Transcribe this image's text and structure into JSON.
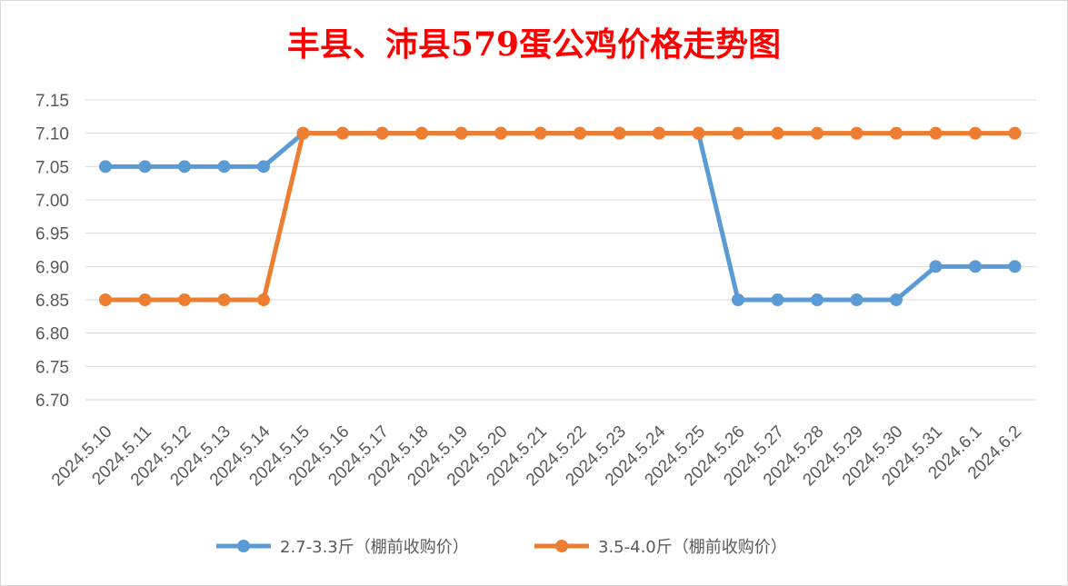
{
  "colors": {
    "title": "#ff0000",
    "series1": "#5b9bd5",
    "series2": "#ed7d31",
    "grid": "#d9d9d9",
    "text": "#595959"
  },
  "chart_data": {
    "type": "line",
    "title": "丰县、沛县579蛋公鸡价格走势图",
    "xlabel": "",
    "ylabel": "",
    "ylim": [
      6.7,
      7.15
    ],
    "yticks": [
      "7.15",
      "7.10",
      "7.05",
      "7.00",
      "6.95",
      "6.90",
      "6.85",
      "6.80",
      "6.75",
      "6.70"
    ],
    "categories": [
      "2024.5.10",
      "2024.5.11",
      "2024.5.12",
      "2024.5.13",
      "2024.5.14",
      "2024.5.15",
      "2024.5.16",
      "2024.5.17",
      "2024.5.18",
      "2024.5.19",
      "2024.5.20",
      "2024.5.21",
      "2024.5.22",
      "2024.5.23",
      "2024.5.24",
      "2024.5.25",
      "2024.5.26",
      "2024.5.27",
      "2024.5.28",
      "2024.5.29",
      "2024.5.30",
      "2024.5.31",
      "2024.6.1",
      "2024.6.2"
    ],
    "series": [
      {
        "name": "2.7-3.3斤（棚前收购价）",
        "values": [
          7.05,
          7.05,
          7.05,
          7.05,
          7.05,
          7.1,
          7.1,
          7.1,
          7.1,
          7.1,
          7.1,
          7.1,
          7.1,
          7.1,
          7.1,
          7.1,
          6.85,
          6.85,
          6.85,
          6.85,
          6.85,
          6.9,
          6.9,
          6.9
        ]
      },
      {
        "name": "3.5-4.0斤（棚前收购价）",
        "values": [
          6.85,
          6.85,
          6.85,
          6.85,
          6.85,
          7.1,
          7.1,
          7.1,
          7.1,
          7.1,
          7.1,
          7.1,
          7.1,
          7.1,
          7.1,
          7.1,
          7.1,
          7.1,
          7.1,
          7.1,
          7.1,
          7.1,
          7.1,
          7.1
        ]
      }
    ],
    "grid": true,
    "legend": "bottom"
  }
}
